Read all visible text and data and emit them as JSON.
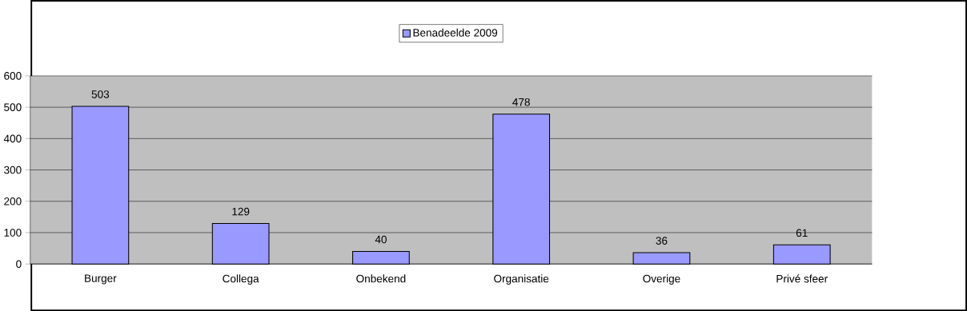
{
  "chart_data": {
    "type": "bar",
    "categories": [
      "Burger",
      "Collega",
      "Onbekend",
      "Organisatie",
      "Overige",
      "Privé sfeer"
    ],
    "series": [
      {
        "name": "Benadeelde 2009",
        "color": "#9999ff",
        "values": [
          503,
          129,
          40,
          478,
          36,
          61
        ]
      }
    ],
    "ylim": [
      0,
      600
    ],
    "yticks": [
      0,
      100,
      200,
      300,
      400,
      500,
      600
    ],
    "grid": "y",
    "legend": "top",
    "data_labels": true
  }
}
